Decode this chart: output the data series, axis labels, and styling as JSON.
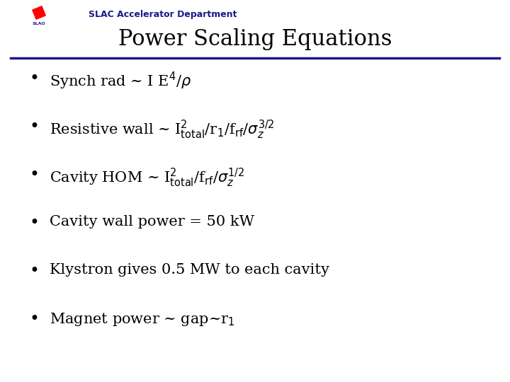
{
  "header_text": "SLAC Accelerator Department",
  "title": "Power Scaling Equations",
  "title_fontsize": 22,
  "header_fontsize": 9,
  "header_color": "#1a1a8c",
  "title_color": "#000000",
  "bg_color": "#ffffff",
  "line_color": "#1a1a8c",
  "bullet_color": "#000000",
  "bullet_fontsize": 15,
  "items": [
    "Synch rad ~ I E$^4$/$\\rho$",
    "Resistive wall ~ I$^2_{\\rm total}$/r$_1$/f$_{\\rm rf}$/$\\sigma_z^{3/2}$",
    "Cavity HOM ~ I$^2_{\\rm total}$/f$_{\\rm rf}$/$\\sigma_z^{1/2}$",
    "Cavity wall power = 50 kW",
    "Klystron gives 0.5 MW to each cavity",
    "Magnet power ~ gap~r$_1$"
  ]
}
